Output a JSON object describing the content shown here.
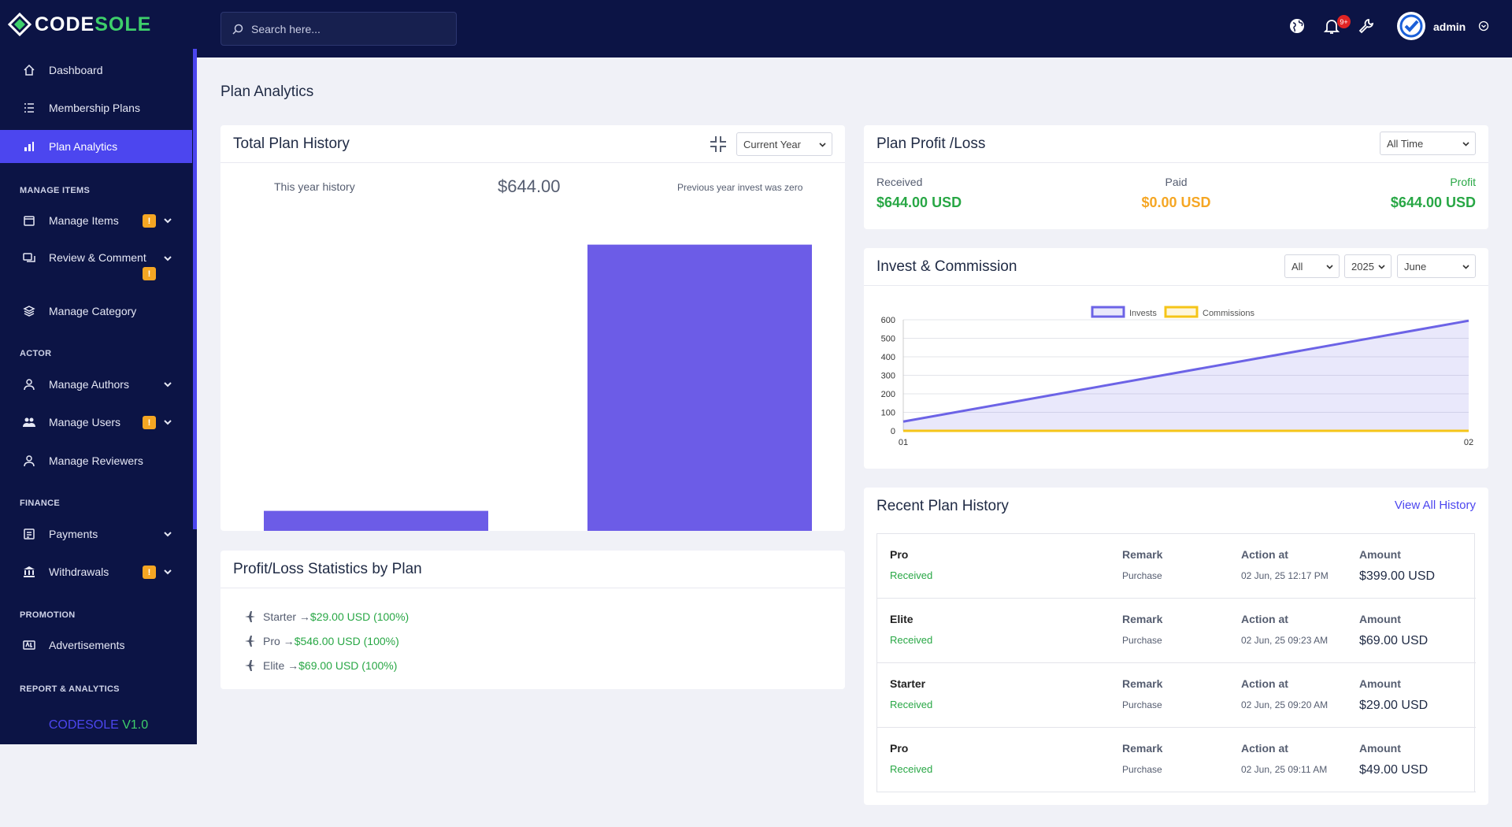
{
  "brand": {
    "code": "CODE",
    "sole": "SOLE",
    "version_prefix": "CODESOLE",
    "version_suffix": "V1.0"
  },
  "search": {
    "placeholder": "Search here..."
  },
  "topbar": {
    "notification_count": "9+",
    "user_name": "admin"
  },
  "sidebar": {
    "items": [
      {
        "label": "Dashboard",
        "icon": "home-icon"
      },
      {
        "label": "Membership Plans",
        "icon": "list-icon"
      },
      {
        "label": "Plan Analytics",
        "icon": "bar-chart-icon",
        "active": true
      },
      {
        "label": "Manage Items",
        "icon": "box-icon",
        "badge": "!"
      },
      {
        "label": "Review & Comment",
        "icon": "comment-icon",
        "badge": "!"
      },
      {
        "label": "Manage Category",
        "icon": "layers-icon"
      },
      {
        "label": "Manage Authors",
        "icon": "user-icon"
      },
      {
        "label": "Manage Users",
        "icon": "users-icon",
        "badge": "!"
      },
      {
        "label": "Manage Reviewers",
        "icon": "user-icon"
      },
      {
        "label": "Payments",
        "icon": "payment-icon"
      },
      {
        "label": "Withdrawals",
        "icon": "bank-icon",
        "badge": "!"
      },
      {
        "label": "Advertisements",
        "icon": "ad-icon"
      }
    ],
    "sections": [
      "MANAGE ITEMS",
      "ACTOR",
      "FINANCE",
      "PROMOTION",
      "REPORT & ANALYTICS"
    ]
  },
  "page": {
    "title": "Plan Analytics"
  },
  "total_history": {
    "title": "Total Plan History",
    "filter": "Current Year",
    "subtitle": "This year history",
    "amount": "$644.00",
    "note": "Previous year invest was zero"
  },
  "profit_loss": {
    "title": "Plan Profit /Loss",
    "filter": "All Time",
    "received_label": "Received",
    "received_value": "$644.00 USD",
    "paid_label": "Paid",
    "paid_value": "$0.00 USD",
    "profit_label": "Profit",
    "profit_value": "$644.00 USD"
  },
  "invest": {
    "title": "Invest & Commission",
    "filter_type": "All",
    "filter_year": "2025",
    "filter_month": "June"
  },
  "stats": {
    "title": "Profit/Loss Statistics by Plan",
    "items": [
      {
        "name": "Starter →",
        "value": "$29.00 USD (100%)"
      },
      {
        "name": "Pro →",
        "value": "$546.00 USD (100%)"
      },
      {
        "name": "Elite →",
        "value": "$69.00 USD (100%)"
      }
    ]
  },
  "recent": {
    "title": "Recent Plan History",
    "view_all": "View All History",
    "col_remark": "Remark",
    "col_action": "Action at",
    "col_amount": "Amount",
    "rows": [
      {
        "plan": "Pro",
        "status": "Received",
        "remark": "Purchase",
        "action_at": "02 Jun, 25 12:17 PM",
        "amount": "$399.00 USD"
      },
      {
        "plan": "Elite",
        "status": "Received",
        "remark": "Purchase",
        "action_at": "02 Jun, 25 09:23 AM",
        "amount": "$69.00 USD"
      },
      {
        "plan": "Starter",
        "status": "Received",
        "remark": "Purchase",
        "action_at": "02 Jun, 25 09:20 AM",
        "amount": "$29.00 USD"
      },
      {
        "plan": "Pro",
        "status": "Received",
        "remark": "Purchase",
        "action_at": "02 Jun, 25 09:11 AM",
        "amount": "$49.00 USD"
      }
    ]
  },
  "colors": {
    "sidebar": "#0c1445",
    "accent": "#4c46ef",
    "green": "#28a745",
    "orange": "#f5a623",
    "invest_line": "#6c63e6",
    "commission_line": "#f5c518"
  },
  "chart_data": [
    {
      "type": "bar",
      "categories": [
        "",
        ""
      ],
      "values": [
        45,
        644
      ],
      "ylim": [
        0,
        700
      ],
      "grid": false
    },
    {
      "type": "area",
      "x": [
        "01",
        "02"
      ],
      "series": [
        {
          "name": "Invests",
          "values": [
            50,
            595
          ]
        },
        {
          "name": "Commissions",
          "values": [
            0,
            0
          ]
        }
      ],
      "ylim": [
        0,
        600
      ],
      "yticks": [
        0,
        100,
        200,
        300,
        400,
        500,
        600
      ],
      "grid": true,
      "legend": "top-center"
    }
  ]
}
